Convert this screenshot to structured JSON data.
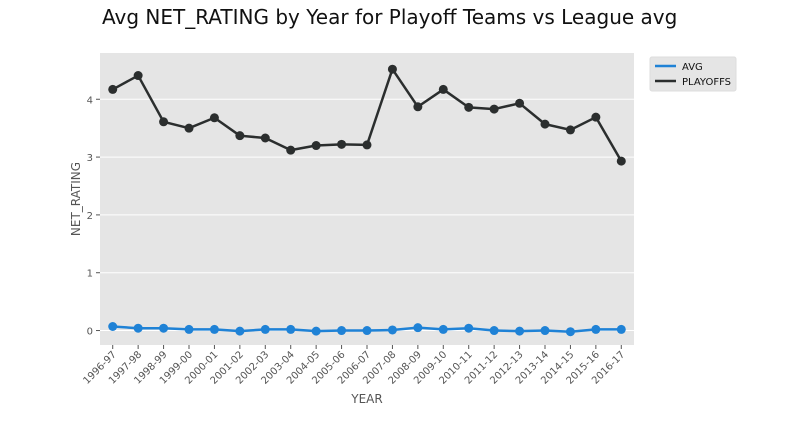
{
  "chart_data": {
    "type": "line",
    "title": "Avg NET_RATING by Year for Playoff Teams vs League avg",
    "xlabel": "YEAR",
    "ylabel": "NET_RATING",
    "ylim": [
      -0.25,
      4.8
    ],
    "yticks": [
      0,
      1,
      2,
      3,
      4
    ],
    "grid": true,
    "legend_position": "outside-top-right",
    "categories": [
      "1996-97",
      "1997-98",
      "1998-99",
      "1999-00",
      "2000-01",
      "2001-02",
      "2002-03",
      "2003-04",
      "2004-05",
      "2005-06",
      "2006-07",
      "2007-08",
      "2008-09",
      "2009-10",
      "2010-11",
      "2011-12",
      "2012-13",
      "2013-14",
      "2014-15",
      "2015-16",
      "2016-17"
    ],
    "series": [
      {
        "name": "AVG",
        "color": "#1f82d6",
        "values": [
          0.07,
          0.04,
          0.04,
          0.02,
          0.02,
          -0.01,
          0.02,
          0.02,
          -0.01,
          0.0,
          0.0,
          0.01,
          0.05,
          0.02,
          0.04,
          0.0,
          -0.01,
          0.0,
          -0.02,
          0.02,
          0.02
        ]
      },
      {
        "name": "PLAYOFFS",
        "color": "#2b2e2e",
        "values": [
          4.17,
          4.41,
          3.61,
          3.5,
          3.68,
          3.37,
          3.33,
          3.12,
          3.2,
          3.22,
          3.21,
          4.52,
          3.87,
          4.17,
          3.86,
          3.83,
          3.93,
          3.57,
          3.47,
          3.69,
          2.93
        ]
      }
    ]
  }
}
